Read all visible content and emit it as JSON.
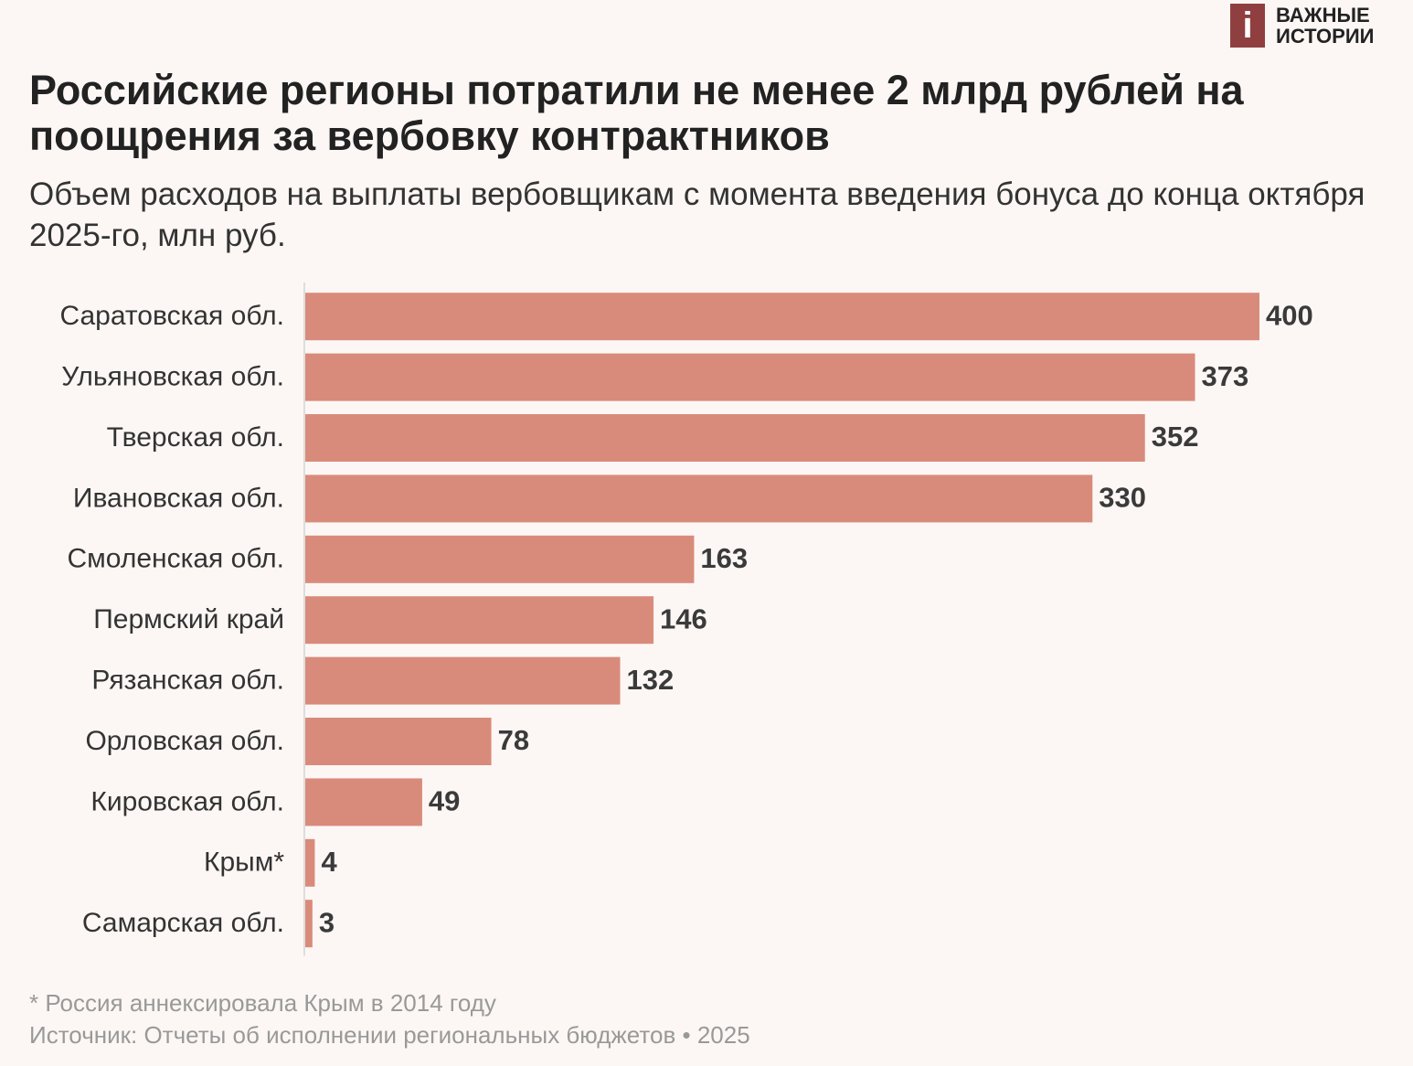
{
  "logo": {
    "icon": "i",
    "text": "ВАЖНЫЕ ИСТОРИИ"
  },
  "chart_data": {
    "type": "hbar",
    "title": "Российские регионы потратили не менее 2 млрд рублей на поощрения за вербовку контрактников",
    "subtitle": "Объем расходов на выплаты вербовщикам с момента введения бонуса до конца октября 2025-го, млн руб.",
    "categories": [
      "Саратовская обл.",
      "Ульяновская обл.",
      "Тверская обл.",
      "Ивановская обл.",
      "Смоленская обл.",
      "Пермский край",
      "Рязанская обл.",
      "Орловская обл.",
      "Кировская обл.",
      "Крым*",
      "Самарская обл."
    ],
    "values": [
      400,
      373,
      352,
      330,
      163,
      146,
      132,
      78,
      49,
      4,
      3
    ],
    "color": "#d98b7b",
    "xlim": [
      0,
      400
    ],
    "notes": [
      "* Россия аннексировала Крым в 2014 году",
      "Источник: Отчеты об исполнении региональных бюджетов • 2025"
    ]
  }
}
